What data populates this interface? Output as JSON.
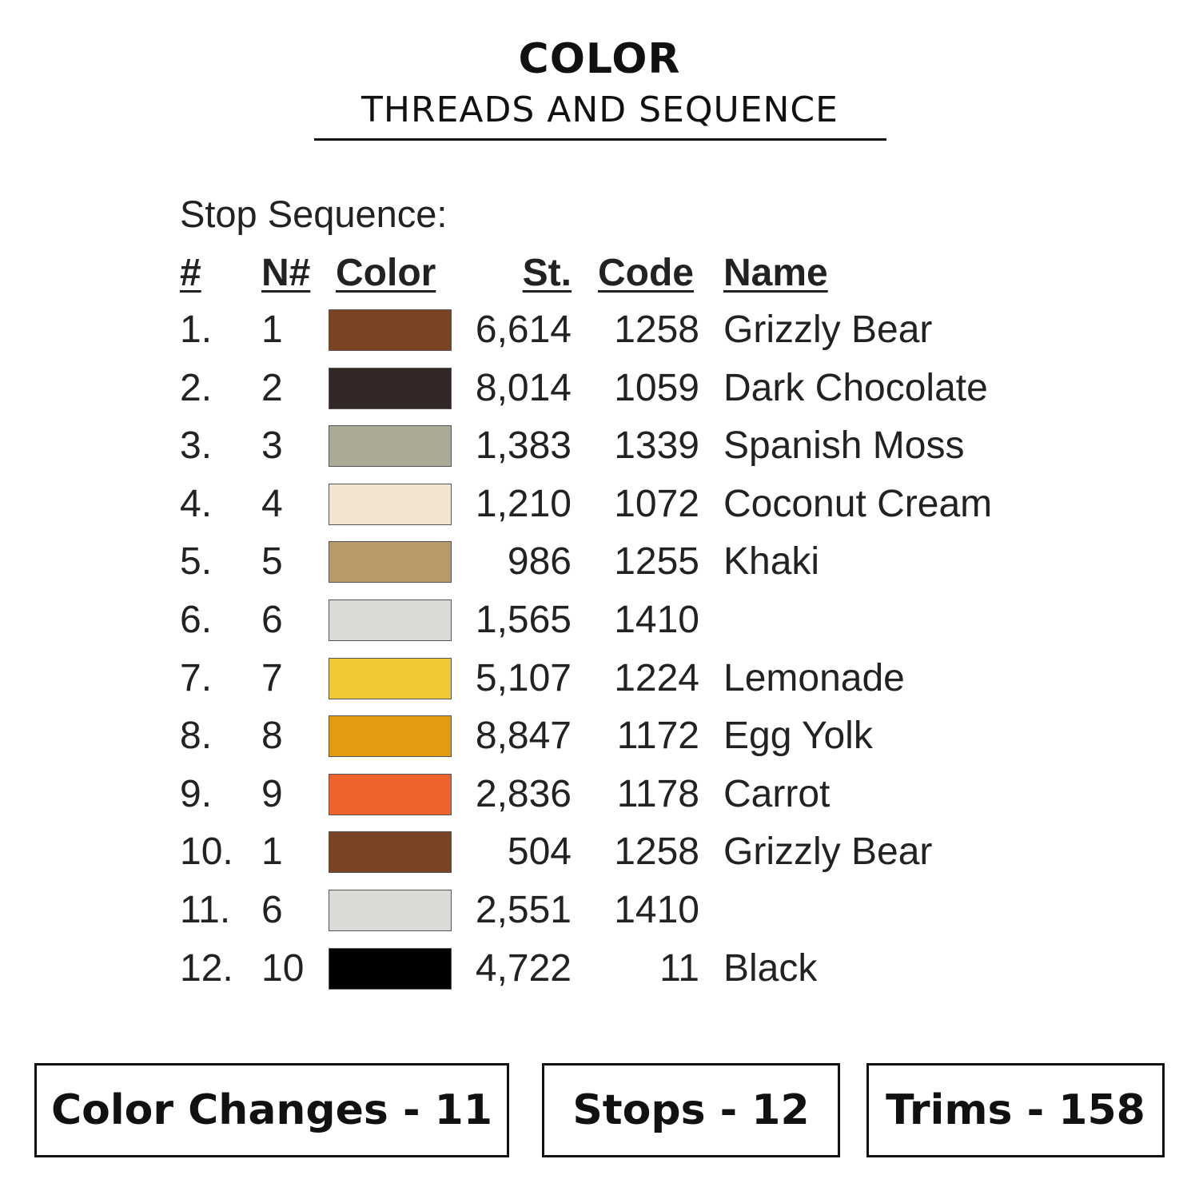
{
  "header": {
    "title": "COLOR",
    "subtitle": "THREADS AND SEQUENCE"
  },
  "sequence": {
    "label": "Stop Sequence:",
    "columns": {
      "num": "#",
      "needle": "N#",
      "color": "Color",
      "stitches": "St.",
      "code": "Code",
      "name": "Name"
    },
    "rows": [
      {
        "num": "1.",
        "needle": "1",
        "color": "#7a4324",
        "stitches": "6,614",
        "code": "1258",
        "name": "Grizzly Bear"
      },
      {
        "num": "2.",
        "needle": "2",
        "color": "#342826",
        "stitches": "8,014",
        "code": "1059",
        "name": "Dark Chocolate"
      },
      {
        "num": "3.",
        "needle": "3",
        "color": "#abaa97",
        "stitches": "1,383",
        "code": "1339",
        "name": "Spanish Moss"
      },
      {
        "num": "4.",
        "needle": "4",
        "color": "#f2e4d0",
        "stitches": "1,210",
        "code": "1072",
        "name": "Coconut Cream"
      },
      {
        "num": "5.",
        "needle": "5",
        "color": "#b9986a",
        "stitches": "986",
        "code": "1255",
        "name": "Khaki"
      },
      {
        "num": "6.",
        "needle": "6",
        "color": "#d9dbd6",
        "stitches": "1,565",
        "code": "1410",
        "name": ""
      },
      {
        "num": "7.",
        "needle": "7",
        "color": "#efc835",
        "stitches": "5,107",
        "code": "1224",
        "name": "Lemonade"
      },
      {
        "num": "8.",
        "needle": "8",
        "color": "#e29c12",
        "stitches": "8,847",
        "code": "1172",
        "name": "Egg Yolk"
      },
      {
        "num": "9.",
        "needle": "9",
        "color": "#f0622b",
        "stitches": "2,836",
        "code": "1178",
        "name": "Carrot"
      },
      {
        "num": "10.",
        "needle": "1",
        "color": "#7a4324",
        "stitches": "504",
        "code": "1258",
        "name": "Grizzly Bear"
      },
      {
        "num": "11.",
        "needle": "6",
        "color": "#d9dbd6",
        "stitches": "2,551",
        "code": "1410",
        "name": ""
      },
      {
        "num": "12.",
        "needle": "10",
        "color": "#000000",
        "stitches": "4,722",
        "code": "11",
        "name": "Black"
      }
    ]
  },
  "summary": {
    "color_changes": "Color Changes - 11",
    "stops": "Stops - 12",
    "trims": "Trims - 158"
  }
}
